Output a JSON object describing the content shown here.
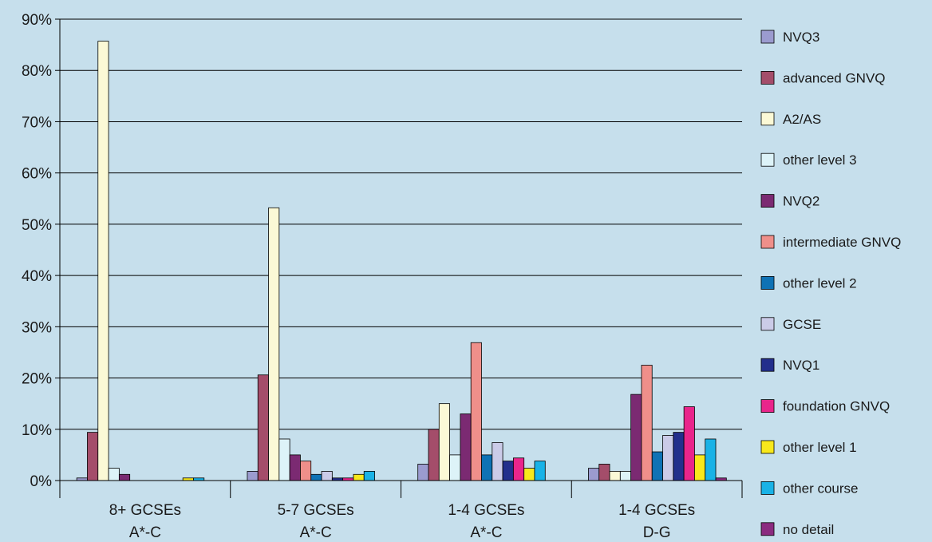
{
  "chart_data": {
    "type": "bar",
    "title": "",
    "xlabel": "",
    "ylabel": "",
    "ylim": [
      0,
      90
    ],
    "yticks": [
      "0%",
      "10%",
      "20%",
      "30%",
      "40%",
      "50%",
      "60%",
      "70%",
      "80%",
      "90%"
    ],
    "grid": true,
    "legend_position": "right",
    "categories": [
      [
        "8+  GCSEs",
        "A*-C"
      ],
      [
        "5-7 GCSEs",
        "A*-C"
      ],
      [
        "1-4 GCSEs",
        "A*-C"
      ],
      [
        "1-4 GCSEs",
        "D-G"
      ]
    ],
    "series": [
      {
        "name": "NVQ3",
        "color": "#9b9bcf",
        "values": [
          0.5,
          1.8,
          3.2,
          2.4
        ]
      },
      {
        "name": "advanced GNVQ",
        "color": "#a44d6a",
        "values": [
          9.4,
          20.6,
          10.0,
          3.2
        ]
      },
      {
        "name": "A2/AS",
        "color": "#fbf9d6",
        "values": [
          85.7,
          53.2,
          15.0,
          1.8
        ]
      },
      {
        "name": "other level 3",
        "color": "#ddf3f8",
        "values": [
          2.4,
          8.1,
          5.0,
          1.8
        ]
      },
      {
        "name": "NVQ2",
        "color": "#7b2a72",
        "values": [
          1.2,
          5.0,
          13.0,
          16.8
        ]
      },
      {
        "name": "intermediate GNVQ",
        "color": "#ef8f8a",
        "values": [
          0,
          3.8,
          26.9,
          22.5
        ]
      },
      {
        "name": "other level 2",
        "color": "#0f72b5",
        "values": [
          0,
          1.2,
          5.0,
          5.6
        ]
      },
      {
        "name": "GCSE",
        "color": "#cbcbe8",
        "values": [
          0,
          1.8,
          7.4,
          8.8
        ]
      },
      {
        "name": "NVQ1",
        "color": "#232f8c",
        "values": [
          0,
          0.5,
          3.8,
          9.4
        ]
      },
      {
        "name": "foundation GNVQ",
        "color": "#e9258b",
        "values": [
          0,
          0.5,
          4.4,
          14.4
        ]
      },
      {
        "name": "other level 1",
        "color": "#f8e81c",
        "values": [
          0.5,
          1.2,
          2.4,
          5.0
        ]
      },
      {
        "name": "other course",
        "color": "#19b2e6",
        "values": [
          0.5,
          1.8,
          3.8,
          8.1
        ]
      },
      {
        "name": "no detail",
        "color": "#8b2b80",
        "values": [
          0,
          0,
          0,
          0.5
        ]
      }
    ]
  }
}
